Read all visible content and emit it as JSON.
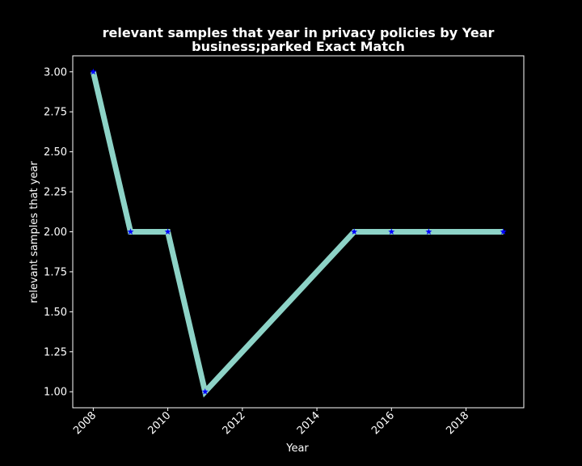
{
  "chart_data": {
    "type": "line",
    "title": "relevant samples that year in privacy policies by Year",
    "subtitle": "business;parked Exact Match",
    "xlabel": "Year",
    "ylabel": "relevant samples that year",
    "x": [
      2008,
      2009,
      2010,
      2011,
      2015,
      2016,
      2017,
      2019
    ],
    "series": [
      {
        "values": [
          3,
          2,
          2,
          1,
          2,
          2,
          2,
          2
        ]
      }
    ],
    "xlim": [
      2007.45,
      2019.55
    ],
    "ylim": [
      0.9,
      3.1
    ],
    "xticks": [
      "2008",
      "2010",
      "2012",
      "2014",
      "2016",
      "2018"
    ],
    "yticks": [
      "1.00",
      "1.25",
      "1.50",
      "1.75",
      "2.00",
      "2.25",
      "2.50",
      "2.75",
      "3.00"
    ],
    "grid": false,
    "legend": "none",
    "colors": {
      "background": "#000000",
      "axes": "#ffffff",
      "line": "#8dd3c7",
      "marker": "#0000ff"
    },
    "marker": "star"
  }
}
